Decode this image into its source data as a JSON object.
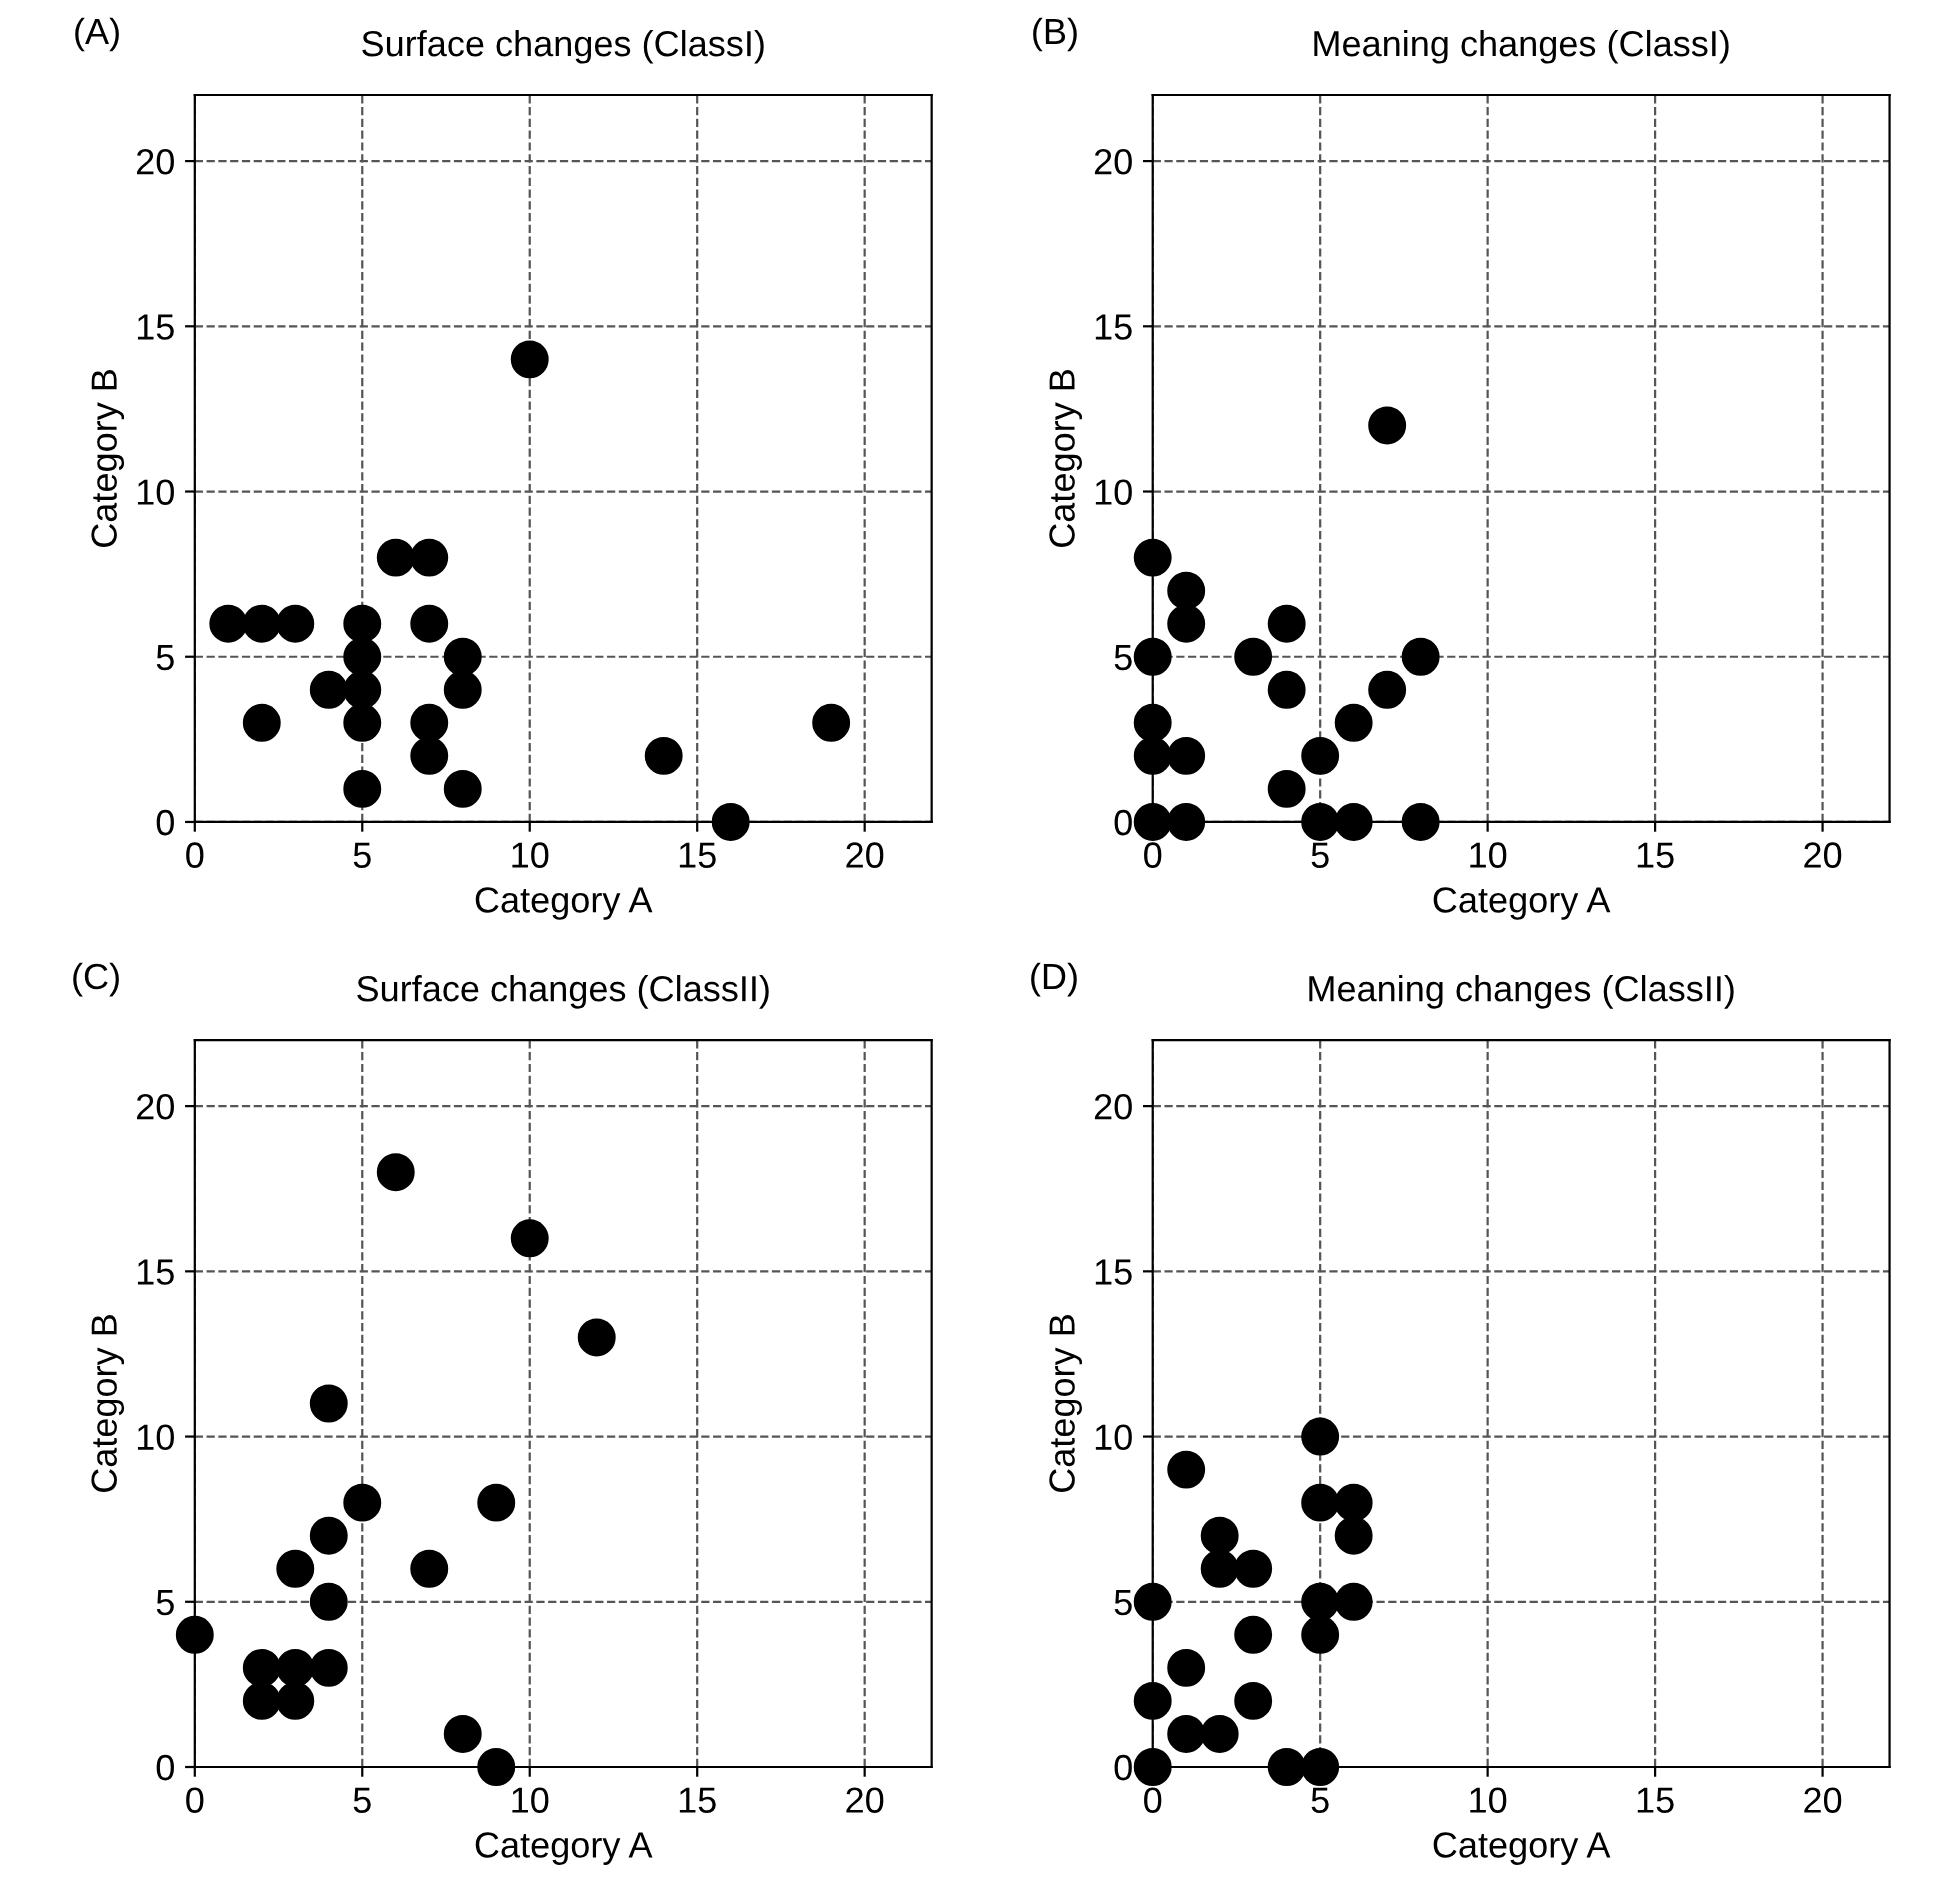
{
  "chart_data": [
    {
      "type": "scatter",
      "title": "Surface changes (ClassI)",
      "xlabel": "Category A",
      "ylabel": "Category B",
      "annotations": [
        "(A)"
      ],
      "xlim": [
        0,
        22
      ],
      "ylim": [
        0,
        22
      ],
      "xticks": [
        0,
        5,
        10,
        15,
        20
      ],
      "yticks": [
        0,
        5,
        10,
        15,
        20
      ],
      "grid": true,
      "marker": "circle",
      "series": [
        {
          "color": "#000000",
          "x": [
            1,
            2,
            3,
            5,
            7,
            6,
            7,
            10,
            5,
            8,
            4,
            5,
            8,
            2,
            5,
            7,
            19,
            7,
            14,
            5,
            8,
            16
          ],
          "values": [
            6,
            6,
            6,
            6,
            6,
            8,
            8,
            14,
            5,
            5,
            4,
            4,
            4,
            3,
            3,
            3,
            3,
            2,
            2,
            1,
            1,
            0
          ]
        }
      ]
    },
    {
      "type": "scatter",
      "title": "Meaning changes (ClassI)",
      "xlabel": "Category A",
      "ylabel": "Category B",
      "annotations": [
        "(B)"
      ],
      "xlim": [
        0,
        22
      ],
      "ylim": [
        0,
        22
      ],
      "xticks": [
        0,
        5,
        10,
        15,
        20
      ],
      "yticks": [
        0,
        5,
        10,
        15,
        20
      ],
      "grid": true,
      "marker": "circle",
      "series": [
        {
          "color": "#000000",
          "x": [
            0,
            1,
            1,
            4,
            0,
            3,
            8,
            4,
            7,
            0,
            6,
            0,
            1,
            5,
            4,
            0,
            1,
            5,
            6,
            8,
            7
          ],
          "values": [
            8,
            7,
            6,
            6,
            5,
            5,
            5,
            4,
            4,
            3,
            3,
            2,
            2,
            2,
            1,
            0,
            0,
            0,
            0,
            0,
            12
          ]
        }
      ]
    },
    {
      "type": "scatter",
      "title": "Surface changes (ClassII)",
      "xlabel": "Category A",
      "ylabel": "Category B",
      "annotations": [
        "(C)"
      ],
      "xlim": [
        0,
        22
      ],
      "ylim": [
        0,
        22
      ],
      "xticks": [
        0,
        5,
        10,
        15,
        20
      ],
      "yticks": [
        0,
        5,
        10,
        15,
        20
      ],
      "grid": true,
      "marker": "circle",
      "series": [
        {
          "color": "#000000",
          "x": [
            6,
            10,
            12,
            4,
            5,
            9,
            4,
            3,
            7,
            4,
            0,
            2,
            3,
            4,
            2,
            3,
            8,
            9
          ],
          "values": [
            18,
            16,
            13,
            11,
            8,
            8,
            7,
            6,
            6,
            5,
            4,
            3,
            3,
            3,
            2,
            2,
            1,
            0
          ]
        }
      ]
    },
    {
      "type": "scatter",
      "title": "Meaning changes (ClassII)",
      "xlabel": "Category A",
      "ylabel": "Category B",
      "annotations": [
        "(D)"
      ],
      "xlim": [
        0,
        22
      ],
      "ylim": [
        0,
        22
      ],
      "xticks": [
        0,
        5,
        10,
        15,
        20
      ],
      "yticks": [
        0,
        5,
        10,
        15,
        20
      ],
      "grid": true,
      "marker": "circle",
      "series": [
        {
          "color": "#000000",
          "x": [
            5,
            1,
            5,
            6,
            2,
            6,
            2,
            3,
            0,
            5,
            6,
            3,
            5,
            1,
            0,
            3,
            1,
            2,
            0,
            4,
            5
          ],
          "values": [
            10,
            9,
            8,
            8,
            7,
            7,
            6,
            6,
            5,
            5,
            5,
            4,
            4,
            3,
            2,
            2,
            1,
            1,
            0,
            0,
            0
          ]
        }
      ]
    }
  ]
}
